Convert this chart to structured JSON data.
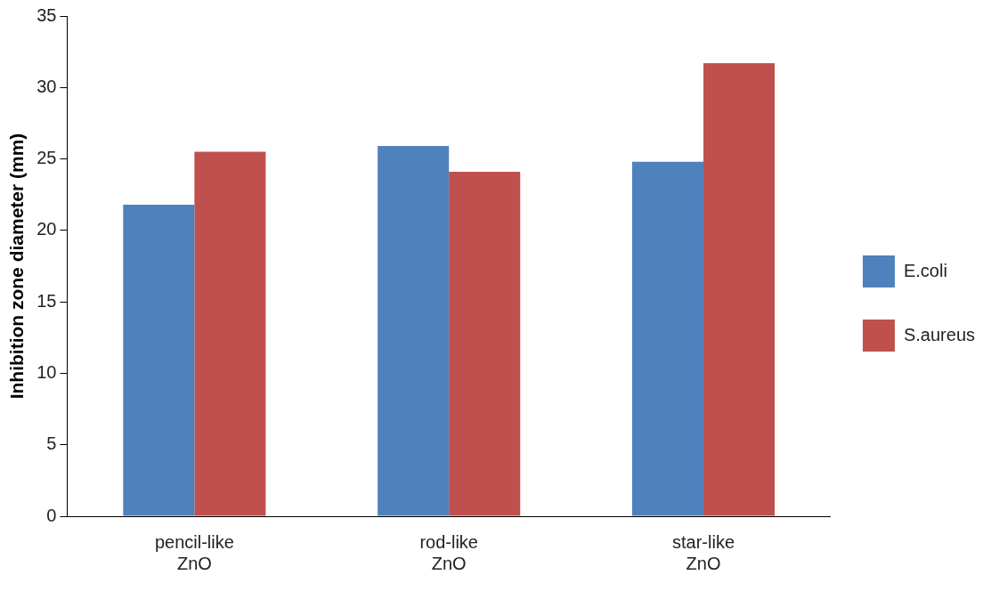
{
  "chart_data": {
    "type": "bar",
    "ylabel": "Inhibition zone diameter (mm)",
    "categories": [
      "pencil-like ZnO",
      "rod-like ZnO",
      "star-like ZnO"
    ],
    "series": [
      {
        "name": "E.coli",
        "color": "#4f81bd",
        "values": [
          21.8,
          25.9,
          24.8
        ]
      },
      {
        "name": "S.aureus",
        "color": "#c0504d",
        "values": [
          25.5,
          24.1,
          31.7
        ]
      }
    ],
    "ylim": [
      0,
      35
    ],
    "yticks": [
      0,
      5,
      10,
      15,
      20,
      25,
      30,
      35
    ],
    "grid": false,
    "legend": "right"
  }
}
